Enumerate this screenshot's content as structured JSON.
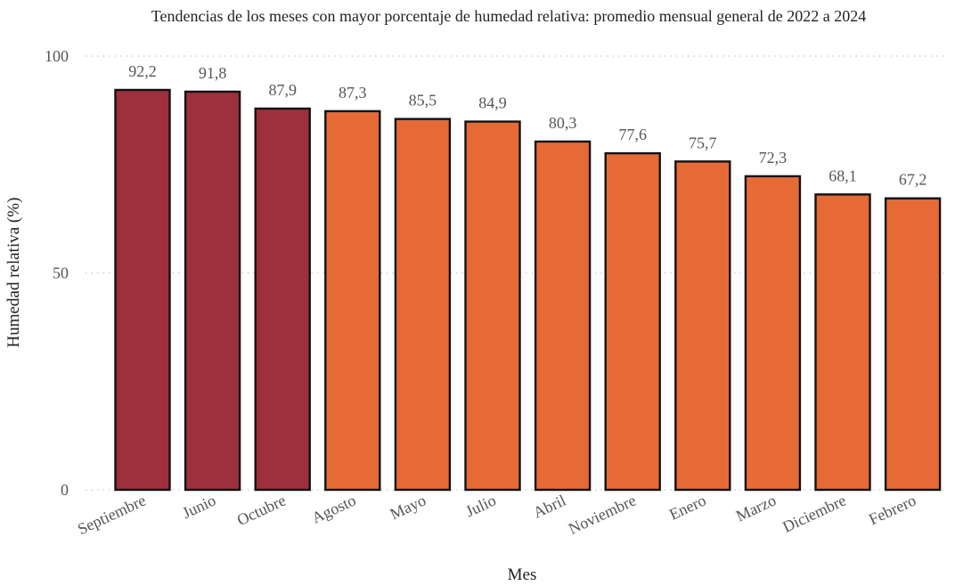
{
  "chart_data": {
    "type": "bar",
    "title": "Tendencias de los meses con mayor porcentaje de humedad relativa: promedio mensual general de 2022 a 2024",
    "xlabel": "Mes",
    "ylabel": "Humedad relativa (%)",
    "ylim": [
      0,
      100
    ],
    "yticks": [
      0,
      50,
      100
    ],
    "grid": true,
    "categories": [
      "Septiembre",
      "Junio",
      "Octubre",
      "Agosto",
      "Mayo",
      "Julio",
      "Abril",
      "Noviembre",
      "Enero",
      "Marzo",
      "Diciembre",
      "Febrero"
    ],
    "values": [
      92.2,
      91.8,
      87.9,
      87.3,
      85.5,
      84.9,
      80.3,
      77.6,
      75.7,
      72.3,
      68.1,
      67.2
    ],
    "value_labels": [
      "92,2",
      "91,8",
      "87,9",
      "87,3",
      "85,5",
      "84,9",
      "80,3",
      "77,6",
      "75,7",
      "72,3",
      "68,1",
      "67,2"
    ],
    "colors": {
      "top3": "#9E2F3C",
      "others": "#E66A36",
      "outline": "#111111"
    },
    "highlighted_count": 3
  }
}
